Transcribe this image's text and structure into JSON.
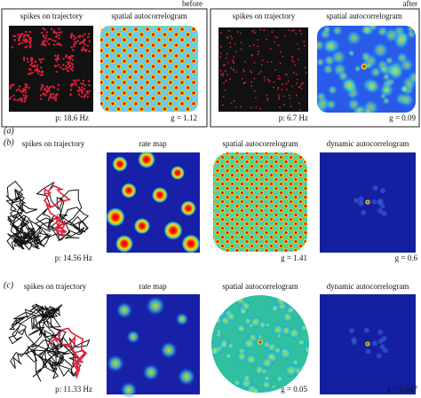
{
  "header": {
    "before": "before",
    "after": "after"
  },
  "panels": [
    {
      "label": "(a)",
      "before": {
        "trajectory_title": "spikes on trajectory",
        "autocorrelogram_title": "spatial autocorrelogram",
        "rate": "p: 18.6 Hz",
        "gridness": "g = 1.12"
      },
      "after": {
        "trajectory_title": "spikes on trajectory",
        "autocorrelogram_title": "spatial autocorrelogram",
        "rate": "p: 6.7 Hz",
        "gridness": "g = 0.09"
      }
    },
    {
      "label": "(b)",
      "titles": [
        "spikes on trajectory",
        "rate map",
        "spatial autocorrelogram",
        "dynamic autocorrelogram"
      ],
      "rate": "p: 14.56 Hz",
      "gridness": [
        "g = 1.41",
        "g = 0.6"
      ]
    },
    {
      "label": "(c)",
      "titles": [
        "spikes on trajectory",
        "rate map",
        "spatial autocorrelogram",
        "dynamic autocorrelogram"
      ],
      "rate": "p: 11.33 Hz",
      "gridness": [
        "g = 0.05",
        "g = 0.047"
      ]
    }
  ]
}
